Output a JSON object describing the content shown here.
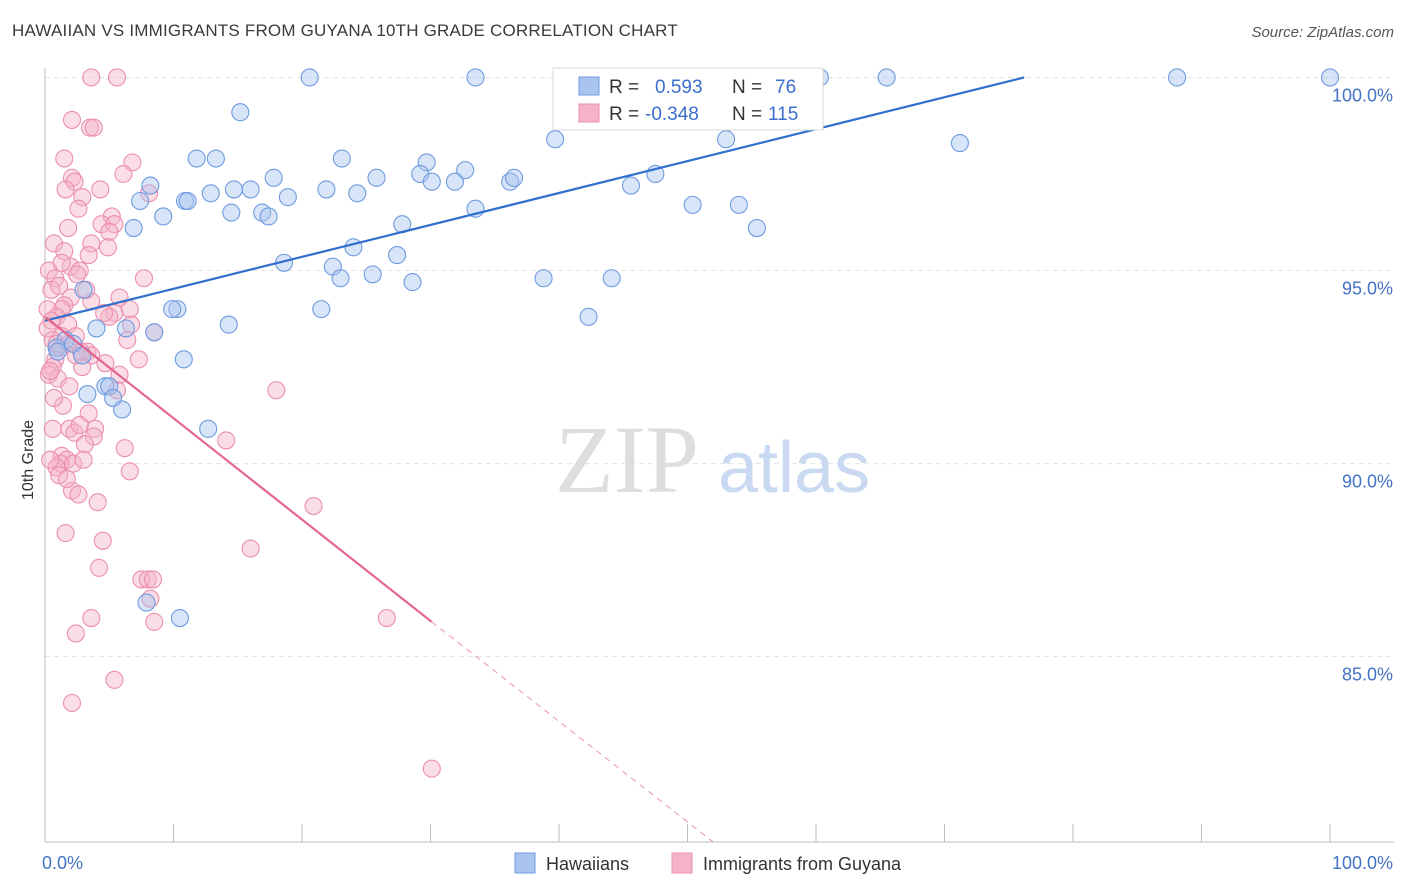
{
  "header": {
    "title": "HAWAIIAN VS IMMIGRANTS FROM GUYANA 10TH GRADE CORRELATION CHART",
    "source": "Source: ZipAtlas.com"
  },
  "watermark": {
    "zip": "ZIP",
    "atlas": "atlas"
  },
  "legend_top": {
    "rows": [
      {
        "r_label": "R =",
        "r_value": "0.593",
        "n_label": "N =",
        "n_value": "76",
        "color": "#a9c4ee"
      },
      {
        "r_label": "R =",
        "r_value": "-0.348",
        "n_label": "N =",
        "n_value": "115",
        "color": "#f5b3c8"
      }
    ]
  },
  "legend_bottom": [
    {
      "label": "Hawaiians",
      "color": "#a9c4ee"
    },
    {
      "label": "Immigrants from Guyana",
      "color": "#f5b3c8"
    }
  ],
  "chart_data": {
    "type": "scatter",
    "title": "HAWAIIAN VS IMMIGRANTS FROM GUYANA 10TH GRADE CORRELATION CHART",
    "xlabel": "",
    "ylabel": "10th Grade",
    "xlim": [
      0,
      100
    ],
    "ylim": [
      80.2,
      100.4
    ],
    "x_tick_labels": [
      "0.0%",
      "100.0%"
    ],
    "y_ticks": [
      85,
      90,
      95,
      100
    ],
    "y_tick_labels": [
      "85.0%",
      "90.0%",
      "95.0%",
      "100.0%"
    ],
    "grid": true,
    "legend_position": "top-center",
    "series": [
      {
        "name": "Hawaiians",
        "color": "#a9c4ee",
        "stroke": "#6f9be0",
        "trend_color": "#2f6fce",
        "trend": {
          "x0": 0,
          "y0": 93.7,
          "x1": 76.2,
          "y1": 100,
          "dash_to": null
        },
        "points": [
          [
            20.6,
            100
          ],
          [
            33.5,
            100
          ],
          [
            60.3,
            100
          ],
          [
            65.5,
            100
          ],
          [
            88.1,
            100
          ],
          [
            100,
            100
          ],
          [
            15.2,
            99.1
          ],
          [
            39.7,
            98.4
          ],
          [
            53.0,
            98.4
          ],
          [
            71.2,
            98.3
          ],
          [
            11.8,
            97.9
          ],
          [
            13.3,
            97.9
          ],
          [
            23.1,
            97.9
          ],
          [
            29.7,
            97.8
          ],
          [
            25.8,
            97.4
          ],
          [
            29.2,
            97.5
          ],
          [
            17.8,
            97.4
          ],
          [
            30.1,
            97.3
          ],
          [
            36.2,
            97.3
          ],
          [
            8.2,
            97.2
          ],
          [
            14.7,
            97.1
          ],
          [
            21.9,
            97.1
          ],
          [
            16.0,
            97.1
          ],
          [
            12.9,
            97.0
          ],
          [
            18.9,
            96.9
          ],
          [
            24.3,
            97.0
          ],
          [
            7.4,
            96.8
          ],
          [
            10.9,
            96.8
          ],
          [
            11.1,
            96.8
          ],
          [
            45.6,
            97.2
          ],
          [
            33.5,
            96.6
          ],
          [
            14.5,
            96.5
          ],
          [
            16.9,
            96.5
          ],
          [
            17.4,
            96.4
          ],
          [
            9.2,
            96.4
          ],
          [
            50.4,
            96.7
          ],
          [
            54.0,
            96.7
          ],
          [
            27.8,
            96.2
          ],
          [
            6.9,
            96.1
          ],
          [
            55.4,
            96.1
          ],
          [
            24.0,
            95.6
          ],
          [
            27.4,
            95.4
          ],
          [
            18.6,
            95.2
          ],
          [
            22.4,
            95.1
          ],
          [
            23.0,
            94.8
          ],
          [
            25.5,
            94.9
          ],
          [
            38.8,
            94.8
          ],
          [
            44.1,
            94.8
          ],
          [
            28.6,
            94.7
          ],
          [
            3.0,
            94.5
          ],
          [
            10.3,
            94.0
          ],
          [
            9.9,
            94.0
          ],
          [
            21.5,
            94.0
          ],
          [
            42.3,
            93.8
          ],
          [
            14.3,
            93.6
          ],
          [
            6.3,
            93.5
          ],
          [
            4.0,
            93.5
          ],
          [
            8.5,
            93.4
          ],
          [
            1.6,
            93.2
          ],
          [
            2.2,
            93.1
          ],
          [
            0.9,
            93.0
          ],
          [
            1.0,
            92.9
          ],
          [
            2.9,
            92.8
          ],
          [
            10.8,
            92.7
          ],
          [
            4.7,
            92.0
          ],
          [
            5.0,
            92.0
          ],
          [
            3.3,
            91.8
          ],
          [
            5.3,
            91.7
          ],
          [
            6.0,
            91.4
          ],
          [
            12.7,
            90.9
          ],
          [
            7.9,
            86.4
          ],
          [
            10.5,
            86.0
          ],
          [
            47.5,
            97.5
          ],
          [
            32.7,
            97.6
          ],
          [
            31.9,
            97.3
          ],
          [
            36.5,
            97.4
          ]
        ]
      },
      {
        "name": "Immigrants from Guyana",
        "color": "#f5b3c8",
        "stroke": "#ec8fae",
        "trend_color": "#e4668f",
        "trend": {
          "x0": 0,
          "y0": 93.8,
          "x1": 30.1,
          "y1": 85.9,
          "dash_to": [
            52.0,
            80.2
          ]
        },
        "points": [
          [
            3.6,
            100
          ],
          [
            5.6,
            100
          ],
          [
            2.1,
            98.9
          ],
          [
            3.5,
            98.7
          ],
          [
            3.8,
            98.7
          ],
          [
            1.5,
            97.9
          ],
          [
            6.8,
            97.8
          ],
          [
            6.1,
            97.5
          ],
          [
            2.1,
            97.4
          ],
          [
            2.3,
            97.3
          ],
          [
            4.3,
            97.1
          ],
          [
            1.6,
            97.1
          ],
          [
            8.1,
            97.0
          ],
          [
            2.9,
            96.9
          ],
          [
            5.2,
            96.4
          ],
          [
            4.4,
            96.2
          ],
          [
            5.4,
            96.2
          ],
          [
            1.8,
            96.1
          ],
          [
            5.0,
            96.0
          ],
          [
            0.7,
            95.7
          ],
          [
            3.6,
            95.7
          ],
          [
            1.5,
            95.5
          ],
          [
            3.4,
            95.4
          ],
          [
            2.0,
            95.1
          ],
          [
            2.7,
            95.0
          ],
          [
            0.3,
            95.0
          ],
          [
            2.5,
            94.9
          ],
          [
            0.8,
            94.8
          ],
          [
            7.7,
            94.8
          ],
          [
            0.5,
            94.5
          ],
          [
            2.0,
            94.3
          ],
          [
            5.8,
            94.3
          ],
          [
            3.6,
            94.2
          ],
          [
            1.5,
            94.1
          ],
          [
            1.3,
            94.0
          ],
          [
            0.2,
            94.0
          ],
          [
            6.6,
            94.0
          ],
          [
            0.9,
            93.8
          ],
          [
            5.4,
            93.9
          ],
          [
            5.0,
            93.8
          ],
          [
            0.5,
            93.7
          ],
          [
            1.8,
            93.6
          ],
          [
            6.7,
            93.6
          ],
          [
            0.2,
            93.5
          ],
          [
            8.5,
            93.4
          ],
          [
            1.3,
            93.3
          ],
          [
            2.4,
            93.3
          ],
          [
            0.6,
            93.2
          ],
          [
            1.8,
            93.1
          ],
          [
            1.2,
            93.0
          ],
          [
            3.3,
            92.9
          ],
          [
            2.4,
            92.8
          ],
          [
            3.6,
            92.8
          ],
          [
            0.8,
            92.7
          ],
          [
            7.3,
            92.7
          ],
          [
            4.7,
            92.6
          ],
          [
            0.6,
            92.5
          ],
          [
            2.9,
            92.5
          ],
          [
            0.3,
            92.3
          ],
          [
            5.8,
            92.3
          ],
          [
            1.0,
            92.2
          ],
          [
            5.6,
            91.9
          ],
          [
            18.0,
            91.9
          ],
          [
            1.4,
            91.5
          ],
          [
            3.4,
            91.3
          ],
          [
            1.9,
            90.9
          ],
          [
            0.6,
            90.9
          ],
          [
            3.9,
            90.9
          ],
          [
            2.3,
            90.8
          ],
          [
            3.8,
            90.7
          ],
          [
            14.1,
            90.6
          ],
          [
            3.1,
            90.5
          ],
          [
            6.2,
            90.4
          ],
          [
            1.3,
            90.2
          ],
          [
            1.7,
            90.1
          ],
          [
            1.2,
            90.0
          ],
          [
            2.2,
            90.0
          ],
          [
            0.9,
            89.9
          ],
          [
            6.6,
            89.8
          ],
          [
            1.1,
            89.7
          ],
          [
            2.1,
            89.3
          ],
          [
            2.6,
            89.2
          ],
          [
            4.1,
            89.0
          ],
          [
            20.9,
            88.9
          ],
          [
            1.6,
            88.2
          ],
          [
            4.5,
            88.0
          ],
          [
            16.0,
            87.8
          ],
          [
            4.2,
            87.3
          ],
          [
            7.5,
            87.0
          ],
          [
            8.0,
            87.0
          ],
          [
            8.4,
            87.0
          ],
          [
            8.2,
            86.5
          ],
          [
            3.6,
            86.0
          ],
          [
            8.5,
            85.9
          ],
          [
            26.6,
            86.0
          ],
          [
            2.4,
            85.6
          ],
          [
            5.4,
            84.4
          ],
          [
            2.1,
            83.8
          ],
          [
            30.1,
            82.1
          ],
          [
            0.9,
            93.1
          ],
          [
            1.1,
            94.6
          ],
          [
            2.8,
            92.9
          ],
          [
            4.6,
            93.9
          ],
          [
            3.0,
            90.1
          ],
          [
            1.7,
            89.6
          ],
          [
            0.4,
            92.4
          ],
          [
            1.3,
            95.2
          ],
          [
            2.6,
            96.6
          ],
          [
            4.9,
            95.6
          ],
          [
            3.2,
            94.5
          ],
          [
            6.4,
            93.2
          ],
          [
            0.7,
            91.7
          ],
          [
            1.9,
            92.0
          ],
          [
            2.7,
            91.0
          ],
          [
            0.4,
            90.1
          ]
        ]
      }
    ]
  }
}
